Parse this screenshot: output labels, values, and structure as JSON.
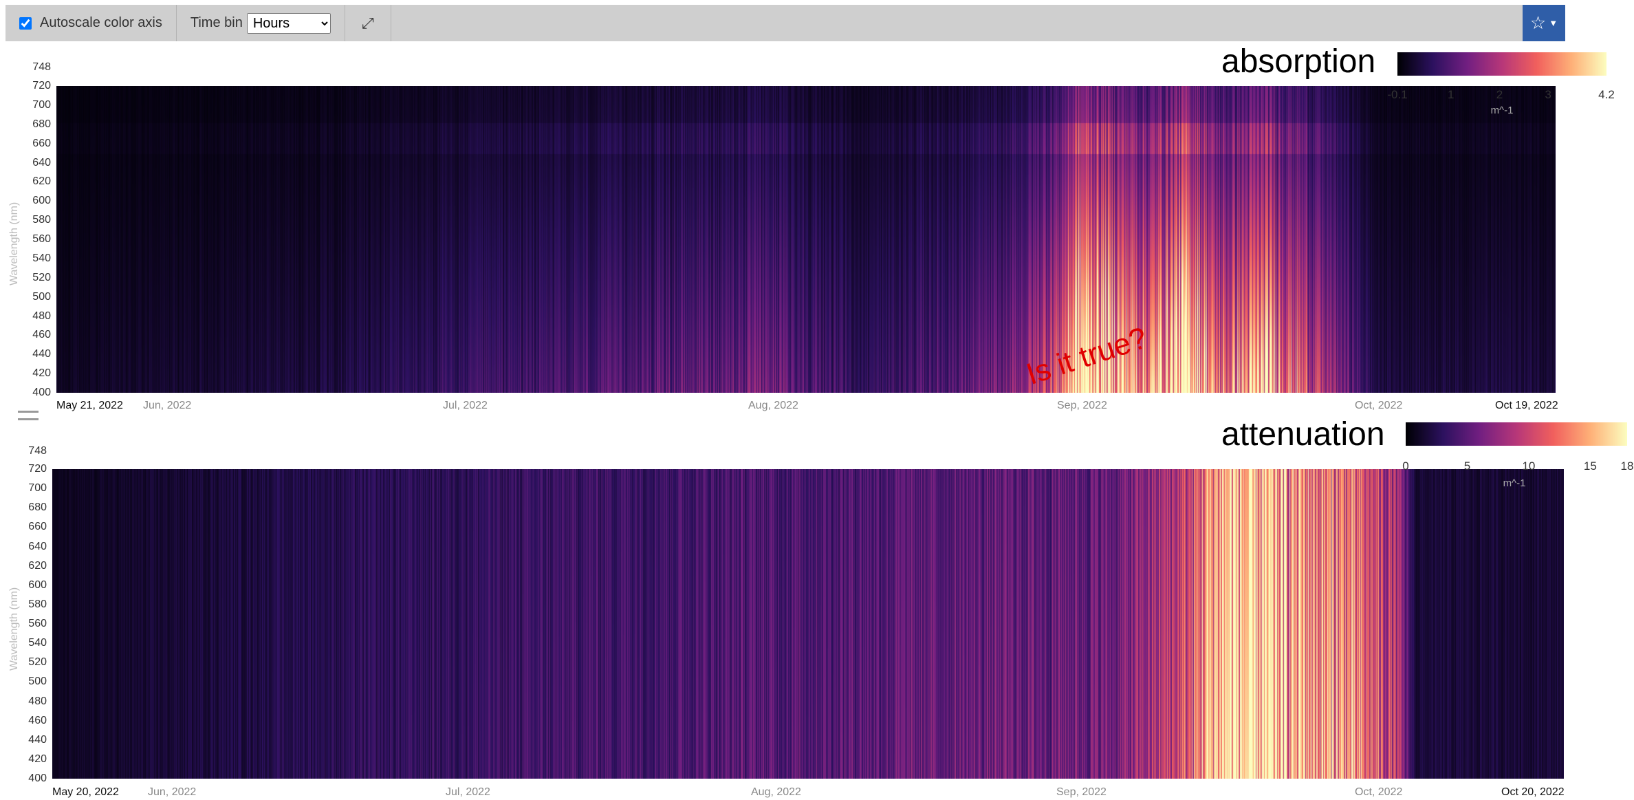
{
  "toolbar": {
    "autoscale_label": "Autoscale color axis",
    "autoscale_checked": true,
    "time_bin_label": "Time bin",
    "time_bin_value": "Hours",
    "expand_icon": "expand-arrows-icon",
    "favorite_icon": "star-outline-icon"
  },
  "colors": {
    "toolbar_bg": "#cfcfcf",
    "favorite_bg": "#2f5ea8",
    "colormap": [
      "#000004",
      "#2c115f",
      "#721f81",
      "#b73779",
      "#f1605d",
      "#feb078",
      "#fcfdbf"
    ],
    "annotation": "#e00000"
  },
  "annotation_text": "Is it true?",
  "charts": [
    {
      "id": "absorption",
      "colorbar": {
        "title": "absorption",
        "ticks": [
          "-0.1",
          "1",
          "2",
          "3",
          "4.2"
        ],
        "tick_values": [
          -0.1,
          1,
          2,
          3,
          4.2
        ],
        "min": -0.1,
        "max": 4.2,
        "unit": "m^-1"
      },
      "ylabel": "Wavelength (nm)",
      "yticks": [
        "748",
        "720",
        "700",
        "680",
        "660",
        "640",
        "620",
        "600",
        "580",
        "560",
        "540",
        "520",
        "500",
        "480",
        "460",
        "440",
        "420",
        "400"
      ],
      "xticks": [
        "May 21, 2022",
        "Jun, 2022",
        "Jul, 2022",
        "Aug, 2022",
        "Sep, 2022",
        "Oct, 2022",
        "Oct 19, 2022"
      ]
    },
    {
      "id": "attenuation",
      "colorbar": {
        "title": "attenuation",
        "ticks": [
          "0",
          "5",
          "10",
          "15",
          "18"
        ],
        "tick_values": [
          0,
          5,
          10,
          15,
          18
        ],
        "min": 0,
        "max": 18,
        "unit": "m^-1"
      },
      "ylabel": "Wavelength (nm)",
      "yticks": [
        "748",
        "720",
        "700",
        "680",
        "660",
        "640",
        "620",
        "600",
        "580",
        "560",
        "540",
        "520",
        "500",
        "480",
        "460",
        "440",
        "420",
        "400"
      ],
      "xticks": [
        "May 20, 2022",
        "Jun, 2022",
        "Jul, 2022",
        "Aug, 2022",
        "Sep, 2022",
        "Oct, 2022",
        "Oct 20, 2022"
      ]
    }
  ],
  "chart_data": [
    {
      "type": "heatmap",
      "title": "absorption",
      "ylabel": "Wavelength (nm)",
      "ylim": [
        400,
        748
      ],
      "x_range": [
        "2022-05-21",
        "2022-10-19"
      ],
      "colorbar_range": [
        -0.1,
        4.2
      ],
      "unit": "m^-1",
      "colormap": "magma",
      "intensity_profile": [
        {
          "x": "2022-05-21",
          "level": 0.05
        },
        {
          "x": "2022-06-15",
          "level": 0.1
        },
        {
          "x": "2022-07-20",
          "level": 0.25
        },
        {
          "x": "2022-08-01",
          "level": 0.3
        },
        {
          "x": "2022-08-10",
          "level": 0.15
        },
        {
          "x": "2022-08-25",
          "level": 0.3
        },
        {
          "x": "2022-08-30",
          "level": 0.6
        },
        {
          "x": "2022-09-01",
          "level": 1.0
        },
        {
          "x": "2022-09-08",
          "level": 0.7
        },
        {
          "x": "2022-09-12",
          "level": 1.0
        },
        {
          "x": "2022-09-15",
          "level": 0.6
        },
        {
          "x": "2022-09-20",
          "level": 0.8
        },
        {
          "x": "2022-09-26",
          "level": 0.4
        },
        {
          "x": "2022-10-01",
          "level": 0.1
        },
        {
          "x": "2022-10-19",
          "level": 0.1
        }
      ]
    },
    {
      "type": "heatmap",
      "title": "attenuation",
      "ylabel": "Wavelength (nm)",
      "ylim": [
        400,
        748
      ],
      "x_range": [
        "2022-05-20",
        "2022-10-20"
      ],
      "colorbar_range": [
        0,
        18
      ],
      "unit": "m^-1",
      "colormap": "magma",
      "intensity_profile": [
        {
          "x": "2022-05-20",
          "level": 0.05
        },
        {
          "x": "2022-06-15",
          "level": 0.15
        },
        {
          "x": "2022-07-20",
          "level": 0.25
        },
        {
          "x": "2022-08-15",
          "level": 0.3
        },
        {
          "x": "2022-09-05",
          "level": 0.35
        },
        {
          "x": "2022-09-12",
          "level": 0.6
        },
        {
          "x": "2022-09-14",
          "level": 0.85
        },
        {
          "x": "2022-09-16",
          "level": 1.0
        },
        {
          "x": "2022-09-28",
          "level": 0.75
        },
        {
          "x": "2022-10-03",
          "level": 0.5
        },
        {
          "x": "2022-10-05",
          "level": 0.1
        },
        {
          "x": "2022-10-20",
          "level": 0.1
        }
      ]
    }
  ]
}
